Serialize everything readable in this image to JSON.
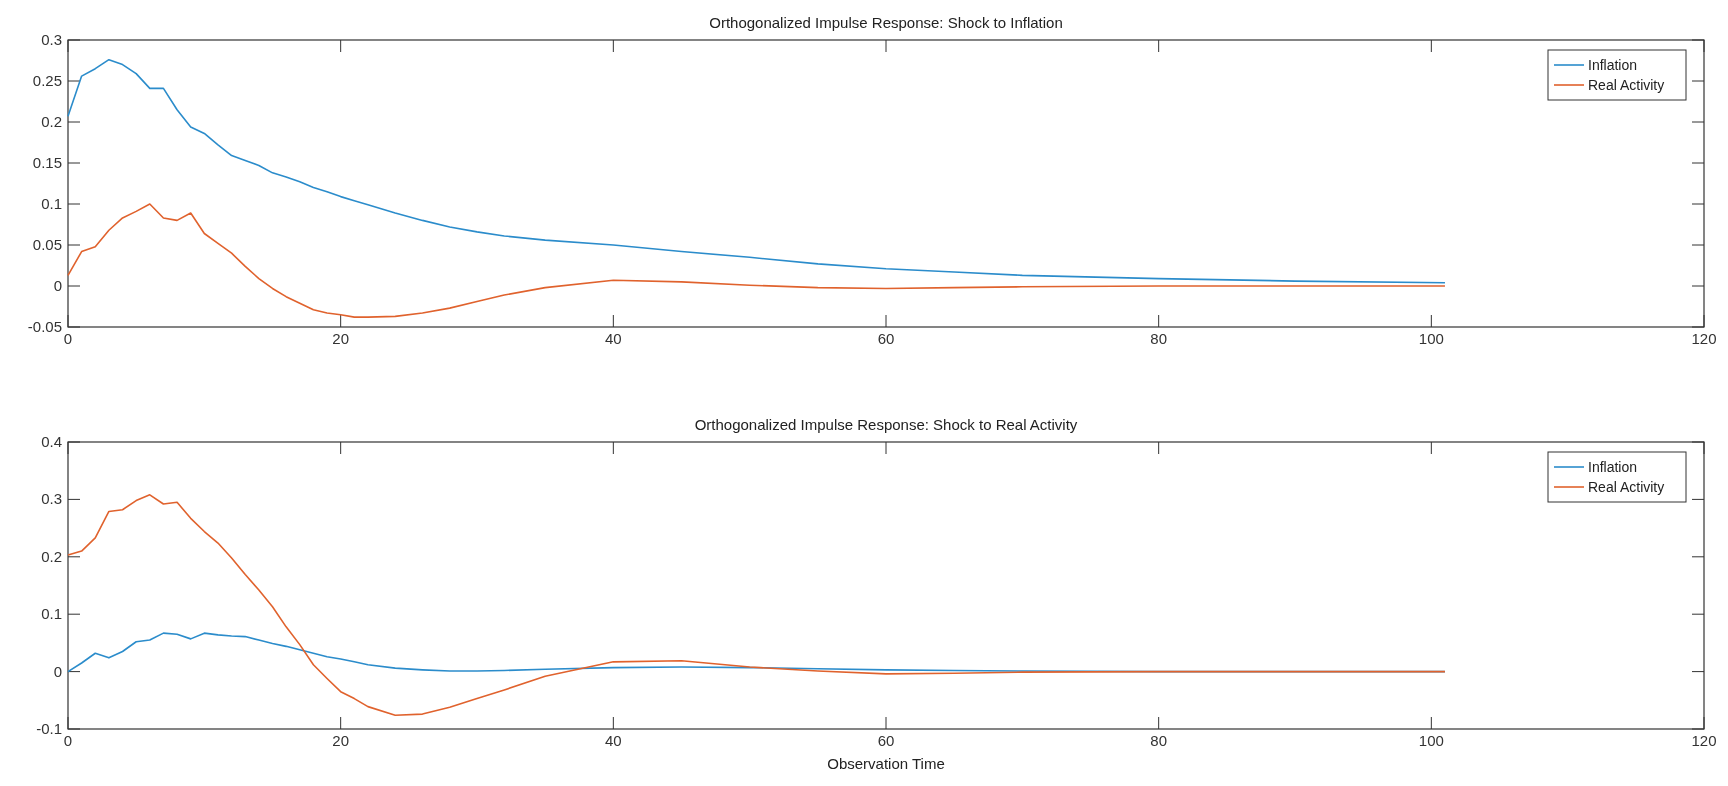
{
  "chart_data": [
    {
      "type": "line",
      "title": "Orthogonalized Impulse Response: Shock to Inflation",
      "x": [
        0,
        1,
        2,
        3,
        4,
        5,
        6,
        7,
        8,
        9,
        10,
        11,
        12,
        13,
        14,
        15,
        16,
        17,
        18,
        19,
        20,
        21,
        22,
        24,
        26,
        28,
        30,
        32,
        35,
        40,
        45,
        50,
        55,
        60,
        65,
        70,
        80,
        90,
        101
      ],
      "xlim": [
        0,
        120
      ],
      "xticks": [
        0,
        20,
        40,
        60,
        80,
        100,
        120
      ],
      "ylim": [
        -0.05,
        0.3
      ],
      "yticks": [
        -0.05,
        0,
        0.05,
        0.1,
        0.15,
        0.2,
        0.25,
        0.3
      ],
      "legend": "top right",
      "grid": false,
      "series": [
        {
          "name": "Inflation",
          "color": "#2b8ccb",
          "values": [
            0.207,
            0.256,
            0.265,
            0.276,
            0.27,
            0.259,
            0.241,
            0.241,
            0.215,
            0.194,
            0.186,
            0.172,
            0.159,
            0.153,
            0.147,
            0.138,
            0.133,
            0.127,
            0.12,
            0.115,
            0.109,
            0.104,
            0.099,
            0.089,
            0.08,
            0.072,
            0.066,
            0.061,
            0.056,
            0.05,
            0.042,
            0.035,
            0.027,
            0.021,
            0.017,
            0.013,
            0.009,
            0.006,
            0.004
          ]
        },
        {
          "name": "Real Activity",
          "color": "#e0622d",
          "values": [
            0.013,
            0.042,
            0.048,
            0.068,
            0.083,
            0.091,
            0.1,
            0.083,
            0.08,
            0.089,
            0.064,
            0.052,
            0.04,
            0.024,
            0.009,
            -0.003,
            -0.013,
            -0.021,
            -0.029,
            -0.033,
            -0.035,
            -0.038,
            -0.038,
            -0.037,
            -0.033,
            -0.027,
            -0.019,
            -0.011,
            -0.002,
            0.007,
            0.005,
            0.001,
            -0.002,
            -0.003,
            -0.002,
            -0.001,
            0,
            0,
            0
          ]
        }
      ]
    },
    {
      "type": "line",
      "title": "Orthogonalized Impulse Response: Shock to Real Activity",
      "xlabel": "Observation Time",
      "x": [
        0,
        1,
        2,
        3,
        4,
        5,
        6,
        7,
        8,
        9,
        10,
        11,
        12,
        13,
        14,
        15,
        16,
        17,
        18,
        19,
        20,
        21,
        22,
        24,
        26,
        28,
        30,
        32,
        35,
        40,
        45,
        50,
        55,
        60,
        65,
        70,
        80,
        90,
        101
      ],
      "xlim": [
        0,
        120
      ],
      "xticks": [
        0,
        20,
        40,
        60,
        80,
        100,
        120
      ],
      "ylim": [
        -0.1,
        0.4
      ],
      "yticks": [
        -0.1,
        0,
        0.1,
        0.2,
        0.3,
        0.4
      ],
      "legend": "top right",
      "grid": false,
      "series": [
        {
          "name": "Inflation",
          "color": "#2b8ccb",
          "values": [
            0,
            0.015,
            0.032,
            0.024,
            0.035,
            0.052,
            0.055,
            0.067,
            0.065,
            0.057,
            0.067,
            0.064,
            0.062,
            0.061,
            0.055,
            0.049,
            0.044,
            0.038,
            0.032,
            0.026,
            0.022,
            0.017,
            0.012,
            0.006,
            0.003,
            0.001,
            0.001,
            0.002,
            0.004,
            0.007,
            0.008,
            0.007,
            0.005,
            0.003,
            0.002,
            0.001,
            0,
            0,
            0
          ]
        },
        {
          "name": "Real Activity",
          "color": "#e0622d",
          "values": [
            0.203,
            0.21,
            0.233,
            0.279,
            0.282,
            0.298,
            0.308,
            0.292,
            0.295,
            0.267,
            0.244,
            0.224,
            0.198,
            0.169,
            0.142,
            0.113,
            0.078,
            0.047,
            0.012,
            -0.012,
            -0.035,
            -0.047,
            -0.061,
            -0.076,
            -0.074,
            -0.062,
            -0.047,
            -0.032,
            -0.008,
            0.017,
            0.019,
            0.008,
            0.001,
            -0.004,
            -0.003,
            -0.001,
            0,
            0,
            0
          ]
        }
      ]
    }
  ]
}
